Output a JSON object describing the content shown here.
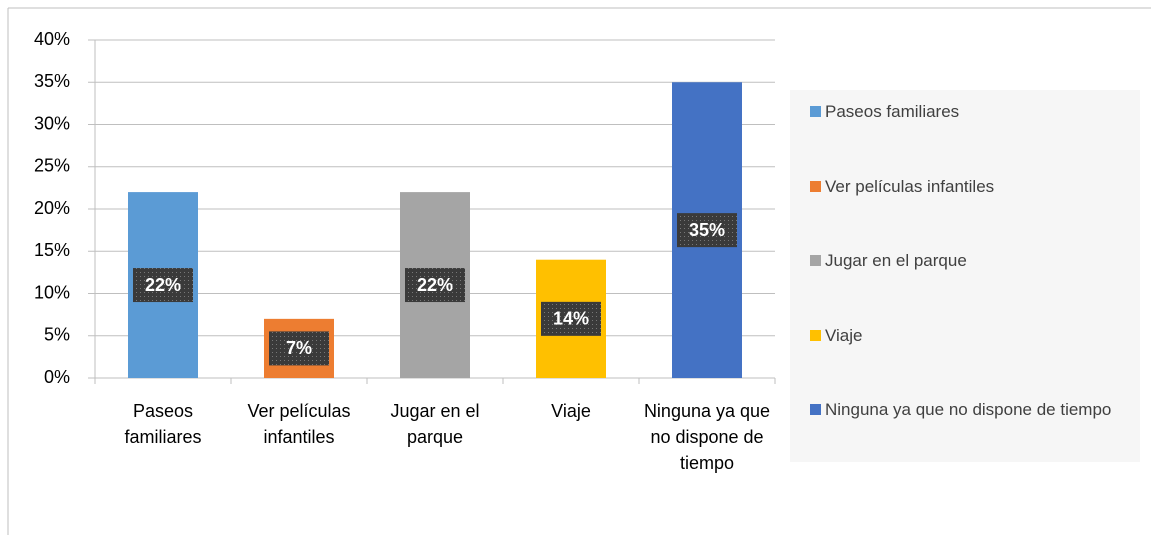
{
  "chart_data": {
    "type": "bar",
    "categories": [
      "Paseos familiares",
      "Ver películas infantiles",
      "Jugar en el parque",
      "Viaje",
      "Ninguna ya que no dispone de tiempo"
    ],
    "values": [
      22,
      7,
      22,
      14,
      35
    ],
    "value_labels": [
      "22%",
      "7%",
      "22%",
      "14%",
      "35%"
    ],
    "colors": [
      "#5b9bd5",
      "#ed7d31",
      "#a5a5a5",
      "#ffc000",
      "#4472c4"
    ],
    "ylim": [
      0,
      40
    ],
    "yticks": [
      {
        "value": 0,
        "label": "0%"
      },
      {
        "value": 5,
        "label": "5%"
      },
      {
        "value": 10,
        "label": "10%"
      },
      {
        "value": 15,
        "label": "15%"
      },
      {
        "value": 20,
        "label": "20%"
      },
      {
        "value": 25,
        "label": "25%"
      },
      {
        "value": 30,
        "label": "30%"
      },
      {
        "value": 35,
        "label": "35%"
      },
      {
        "value": 40,
        "label": "40%"
      }
    ],
    "grid": true,
    "legend": "right"
  }
}
